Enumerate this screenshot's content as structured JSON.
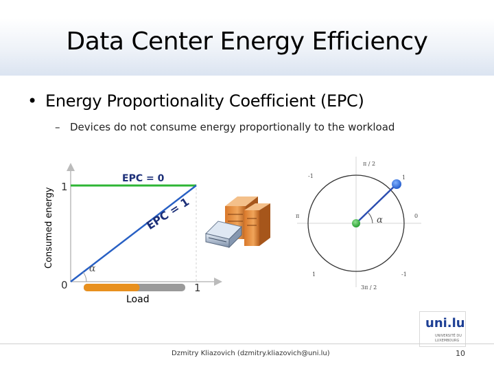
{
  "slide": {
    "title": "Data Center Energy Efficiency",
    "bullet": "Energy Proportionality Coefficient (EPC)",
    "sub_bullet": "Devices do not consume energy proportionally to the workload"
  },
  "graph": {
    "y_axis_label": "Consumed energy",
    "x_axis_label": "Load",
    "tick_origin": "0",
    "tick_y1": "1",
    "tick_x1": "1",
    "epc_zero_label": "EPC = 0",
    "epc_one_label": "EPC = 1",
    "angle_label": "α",
    "colors": {
      "epc_zero_line": "#2db534",
      "epc_one_line": "#2860c4",
      "load_bar": "#e8901e",
      "load_bar_rest": "#9a9a9a"
    },
    "load_level": 0.55
  },
  "unit_circle": {
    "labels": {
      "top": "π / 2",
      "bottom": "3π / 2",
      "left": "π",
      "right": "0",
      "angle": "α"
    },
    "scale_labels": [
      "-1",
      "1",
      "1",
      "-1"
    ],
    "colors": {
      "vector": "#2b4db0",
      "tip": "#2b6bdc",
      "center": "#2eac3a"
    }
  },
  "footer": {
    "author": "Dzmitry Kliazovich (dzmitry.kliazovich@uni.lu)",
    "page_number": "10"
  },
  "logo": {
    "mark": "uni.lu",
    "lines": [
      "UNIVERSITÉ DU",
      "LUXEMBOURG"
    ]
  }
}
